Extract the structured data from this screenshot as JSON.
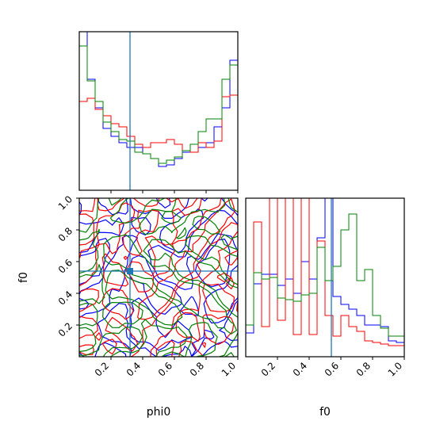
{
  "chart_data": {
    "type": "corner",
    "parameters": [
      "phi0",
      "f0"
    ],
    "axis_labels": {
      "x_bottom_left": "phi0",
      "x_bottom_right": "f0",
      "y_left": "f0"
    },
    "ticks": {
      "values": [
        0.2,
        0.4,
        0.6,
        0.8,
        1.0
      ],
      "labels": [
        "0.2",
        "0.4",
        "0.6",
        "0.8",
        "1.0"
      ]
    },
    "range": {
      "phi0": [
        0,
        1
      ],
      "f0": [
        0,
        1
      ]
    },
    "truth": {
      "phi0": 0.32,
      "f0": 0.54,
      "color": "#1f77b4"
    },
    "series_colors": [
      "#0000ff",
      "#ff0000",
      "#008000"
    ],
    "hist_phi0": {
      "bins": 20,
      "y_max": 1.0,
      "series": [
        {
          "color": "#0000ff",
          "values": [
            1.0,
            0.7,
            0.52,
            0.39,
            0.34,
            0.3,
            0.27,
            0.27,
            0.23,
            0.2,
            0.15,
            0.16,
            0.2,
            0.24,
            0.24,
            0.27,
            0.3,
            0.4,
            0.52,
            0.82
          ]
        },
        {
          "color": "#ff0000",
          "values": [
            0.56,
            0.58,
            0.51,
            0.47,
            0.42,
            0.4,
            0.34,
            0.29,
            0.27,
            0.3,
            0.3,
            0.32,
            0.29,
            0.25,
            0.24,
            0.3,
            0.27,
            0.31,
            0.59,
            0.6
          ]
        },
        {
          "color": "#008000",
          "values": [
            0.91,
            0.69,
            0.56,
            0.43,
            0.37,
            0.32,
            0.31,
            0.24,
            0.23,
            0.2,
            0.17,
            0.19,
            0.21,
            0.25,
            0.29,
            0.37,
            0.45,
            0.45,
            0.7,
            0.79
          ]
        }
      ]
    },
    "hist_f0": {
      "bins": 20,
      "y_max": 1.0,
      "series": [
        {
          "color": "#0000ff",
          "values": [
            0.15,
            0.46,
            0.52,
            0.52,
            0.45,
            0.49,
            0.4,
            0.6,
            0.49,
            0.75,
            1.0,
            0.38,
            0.33,
            0.3,
            0.26,
            0.2,
            0.2,
            0.19,
            0.1,
            0.09
          ]
        },
        {
          "color": "#ff0000",
          "values": [
            0.2,
            0.85,
            0.19,
            1.0,
            0.23,
            1.0,
            0.14,
            1.0,
            0.14,
            0.73,
            0.26,
            0.13,
            0.26,
            0.19,
            0.16,
            0.1,
            0.09,
            0.08,
            0.07,
            0.07
          ]
        },
        {
          "color": "#008000",
          "values": [
            0.2,
            0.53,
            0.49,
            0.5,
            0.37,
            0.36,
            0.35,
            0.39,
            0.4,
            0.69,
            0.48,
            0.57,
            0.8,
            0.9,
            0.48,
            0.55,
            0.26,
            0.18,
            0.13,
            0.13
          ]
        }
      ]
    },
    "contour_2d": {
      "x_param": "phi0",
      "y_param": "f0",
      "series_colors": [
        "#0000ff",
        "#ff0000",
        "#008000"
      ]
    }
  }
}
